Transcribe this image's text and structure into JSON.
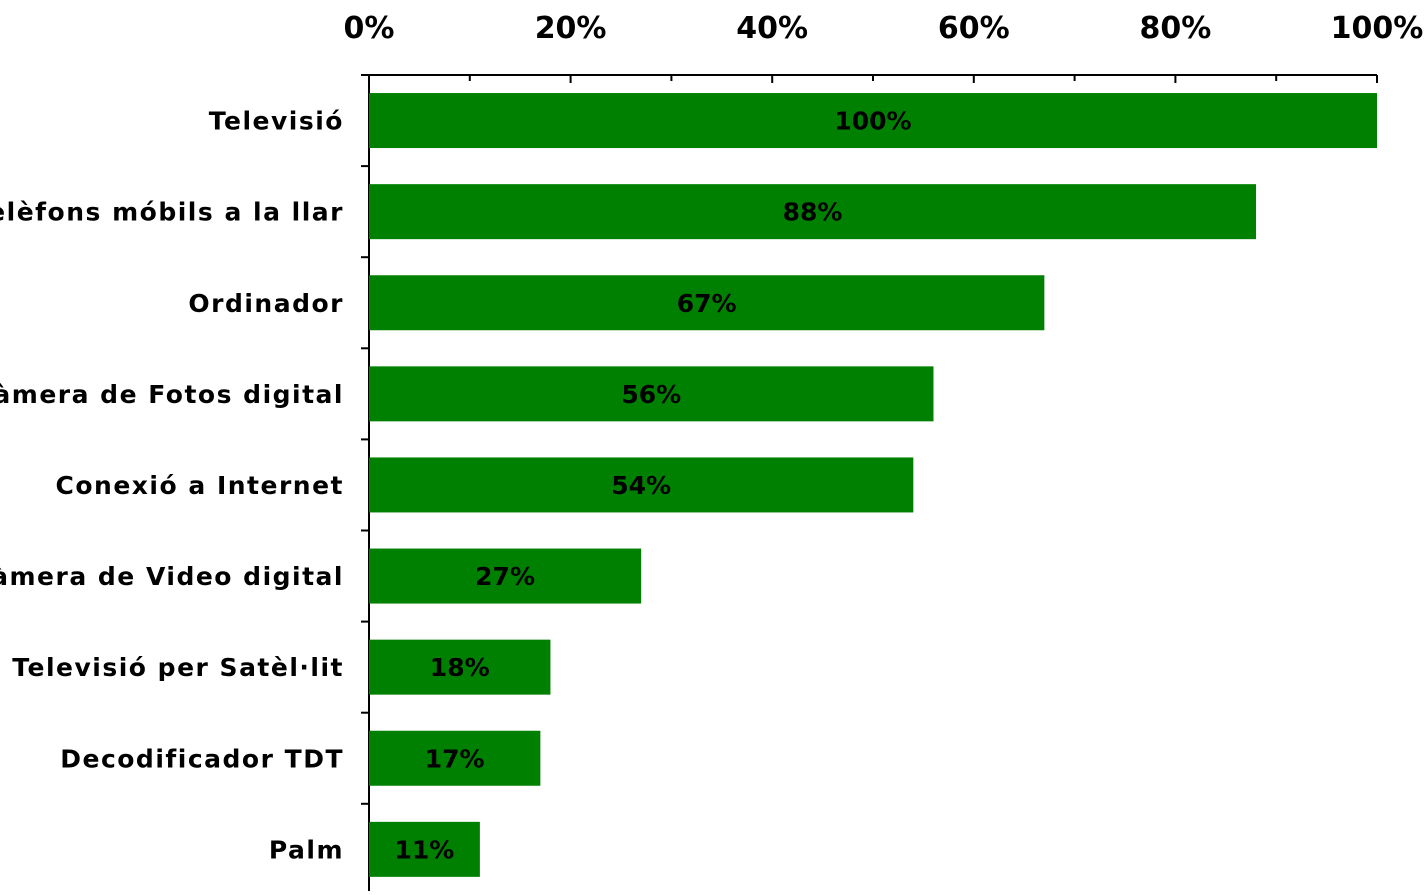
{
  "chart_data": {
    "type": "bar",
    "orientation": "horizontal",
    "categories": [
      "Televisió",
      "Telèfons móbils a la llar",
      "Ordinador ",
      "Càmera de Fotos digital",
      "Conexió a Internet ",
      "Càmera de Video digital",
      "Televisió per Satèl·lit",
      "Decodificador TDT",
      "Palm"
    ],
    "values": [
      100,
      88,
      67,
      56,
      54,
      27,
      18,
      17,
      11
    ],
    "data_labels": [
      "100%",
      "88%",
      "67%",
      "56%",
      "54%",
      "27%",
      "18%",
      "17%",
      "11%"
    ],
    "x_ticks": [
      0,
      20,
      40,
      60,
      80,
      100
    ],
    "x_tick_labels": [
      "0%",
      "20%",
      "40%",
      "60%",
      "80%",
      "100%"
    ],
    "xlim": [
      0,
      100
    ],
    "x_axis_position": "top",
    "grid": false,
    "legend": "none",
    "bar_color": "#008000",
    "title": "",
    "xlabel": "",
    "ylabel": ""
  }
}
